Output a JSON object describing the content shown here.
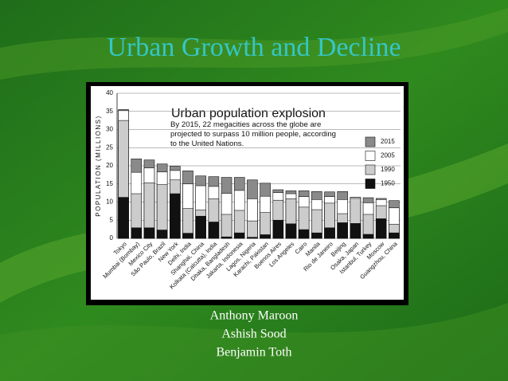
{
  "slide_title": "Urban Growth and Decline",
  "authors": [
    "Anthony Maroon",
    "Ashish Sood",
    "Benjamin Toth"
  ],
  "chart_data": {
    "type": "overlapping_bar",
    "title": "Urban population explosion",
    "subtitle": "By 2015, 22 megacities across the globe are projected to surpass 10 million people, according to the United Nations.",
    "y_label": "POPULATION (MILLIONS)",
    "categories": [
      "Tokyo",
      "Mumbai (Bombay)",
      "Mexico City",
      "São Paulo, Brazil",
      "New York",
      "Delhi, India",
      "Shanghai, China",
      "Kolkata (Calcutta), India",
      "Dhaka, Bangladesh",
      "Jakarta, Indonesia",
      "Lagos, Nigeria",
      "Karachi, Pakistan",
      "Buenos Aires",
      "Los Angeles",
      "Cairo",
      "Manila",
      "Rio de Janeiro",
      "Beijing",
      "Osaka, Japan",
      "Istanbul, Turkey",
      "Moscow",
      "Guangzhou, China"
    ],
    "series": [
      {
        "name": "2015",
        "color": "#8a8a8a",
        "values": [
          35.5,
          21.9,
          21.6,
          20.5,
          19.9,
          18.6,
          17.2,
          17.0,
          16.8,
          16.8,
          16.1,
          15.2,
          13.4,
          13.1,
          13.1,
          12.9,
          12.8,
          12.9,
          11.3,
          11.2,
          11.0,
          10.4
        ]
      },
      {
        "name": "2005",
        "color": "#ffffff",
        "values": [
          35.2,
          18.2,
          19.4,
          18.3,
          18.7,
          15.0,
          14.5,
          14.3,
          12.4,
          13.2,
          10.9,
          11.6,
          12.6,
          12.3,
          11.5,
          10.7,
          11.5,
          10.7,
          11.3,
          9.8,
          10.7,
          8.4
        ]
      },
      {
        "name": "1990",
        "color": "#cccccc",
        "values": [
          32.5,
          12.3,
          15.3,
          14.8,
          16.1,
          8.2,
          7.8,
          10.9,
          6.6,
          7.7,
          4.8,
          7.1,
          10.5,
          10.9,
          8.6,
          7.9,
          9.7,
          6.8,
          11.0,
          6.6,
          9.0,
          3.9
        ]
      },
      {
        "name": "1950",
        "color": "#111111",
        "values": [
          11.3,
          2.9,
          2.9,
          2.3,
          12.3,
          1.4,
          6.1,
          4.5,
          0.4,
          1.5,
          0.3,
          1.0,
          5.0,
          4.0,
          2.4,
          1.5,
          2.9,
          4.3,
          4.1,
          1.1,
          5.4,
          1.5
        ]
      }
    ],
    "ylim": [
      0,
      40
    ],
    "yticks": [
      0,
      5,
      10,
      15,
      20,
      25,
      30,
      35,
      40
    ],
    "grid": true
  }
}
